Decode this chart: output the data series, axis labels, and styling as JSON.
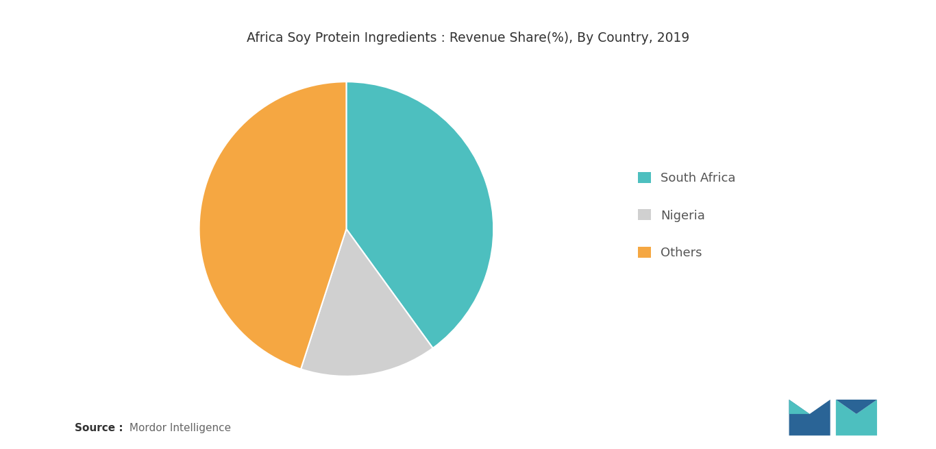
{
  "title": "Africa Soy Protein Ingredients : Revenue Share(%), By Country, 2019",
  "title_fontsize": 13.5,
  "slices": [
    {
      "label": "South Africa",
      "value": 40,
      "color": "#4dbfbf"
    },
    {
      "label": "Nigeria",
      "value": 15,
      "color": "#d0d0d0"
    },
    {
      "label": "Others",
      "value": 45,
      "color": "#f5a742"
    }
  ],
  "legend_labels": [
    "South Africa",
    "Nigeria",
    "Others"
  ],
  "legend_colors": [
    "#4dbfbf",
    "#d0d0d0",
    "#f5a742"
  ],
  "source_bold": "Source :",
  "source_normal": " Mordor Intelligence",
  "background_color": "#ffffff",
  "startangle": 90,
  "logo_left_color": "#2a6496",
  "logo_teal_color": "#4dbfbf"
}
